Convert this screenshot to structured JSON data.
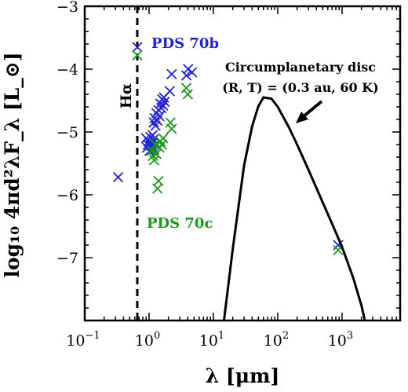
{
  "chart_data": {
    "type": "scatter",
    "xscale": "log",
    "xlim": [
      0.1,
      8000
    ],
    "ylim": [
      -8,
      -3
    ],
    "xlabel": "λ [μm]",
    "ylabel": "log₁₀ 4πd²λF_λ [L_⊙]",
    "x_ticks": [
      {
        "value": 0.1,
        "base": "10",
        "exp": "−1"
      },
      {
        "value": 1,
        "base": "10",
        "exp": "0"
      },
      {
        "value": 10,
        "base": "10",
        "exp": "1"
      },
      {
        "value": 100,
        "base": "10",
        "exp": "2"
      },
      {
        "value": 1000,
        "base": "10",
        "exp": "3"
      }
    ],
    "y_ticks": [
      {
        "value": -3,
        "label": "−3"
      },
      {
        "value": -4,
        "label": "−4"
      },
      {
        "value": -5,
        "label": "−5"
      },
      {
        "value": -6,
        "label": "−6"
      },
      {
        "value": -7,
        "label": "−7"
      }
    ],
    "grid": false,
    "colors": {
      "pds70b": "#2222dd",
      "pds70c": "#1a9a1a",
      "curve": "#000000"
    },
    "series": [
      {
        "name": "PDS 70b",
        "marker": "x",
        "points": [
          [
            0.33,
            -5.72
          ],
          [
            0.656,
            -3.65
          ],
          [
            0.9,
            -5.1
          ],
          [
            0.93,
            -5.25
          ],
          [
            0.96,
            -5.2
          ],
          [
            0.99,
            -5.15
          ],
          [
            1.02,
            -5.3
          ],
          [
            1.05,
            -5.08
          ],
          [
            1.08,
            -5.22
          ],
          [
            1.11,
            -5.18
          ],
          [
            1.14,
            -5.05
          ],
          [
            1.17,
            -5.12
          ],
          [
            1.2,
            -5.28
          ],
          [
            1.18,
            -4.85
          ],
          [
            1.22,
            -4.78
          ],
          [
            1.26,
            -4.9
          ],
          [
            1.3,
            -4.7
          ],
          [
            1.35,
            -4.82
          ],
          [
            1.4,
            -4.65
          ],
          [
            1.45,
            -4.75
          ],
          [
            1.5,
            -4.55
          ],
          [
            1.55,
            -4.62
          ],
          [
            1.6,
            -4.48
          ],
          [
            1.65,
            -4.58
          ],
          [
            1.7,
            -4.45
          ],
          [
            1.75,
            -4.52
          ],
          [
            2.1,
            -4.35
          ],
          [
            2.25,
            -4.08
          ],
          [
            3.8,
            -4.1
          ],
          [
            4.05,
            -4.0
          ],
          [
            4.65,
            -4.05
          ],
          [
            870,
            -6.8
          ]
        ]
      },
      {
        "name": "PDS 70c",
        "marker": "x",
        "points": [
          [
            0.656,
            -3.78
          ],
          [
            1.1,
            -5.3
          ],
          [
            1.15,
            -5.38
          ],
          [
            1.2,
            -5.45
          ],
          [
            1.25,
            -5.2
          ],
          [
            1.3,
            -5.35
          ],
          [
            1.35,
            -5.9
          ],
          [
            1.4,
            -5.78
          ],
          [
            1.45,
            -5.25
          ],
          [
            1.5,
            -5.15
          ],
          [
            1.58,
            -5.2
          ],
          [
            1.65,
            -5.1
          ],
          [
            2.15,
            -4.85
          ],
          [
            2.25,
            -4.95
          ],
          [
            3.8,
            -4.3
          ],
          [
            4.0,
            -4.4
          ],
          [
            870,
            -6.88
          ]
        ]
      },
      {
        "name": "Circumplanetary disc",
        "type": "line",
        "temperature_K": 60,
        "peak": [
          60,
          -4.45
        ],
        "points": [
          [
            14.6,
            -8.0
          ],
          [
            20,
            -6.86
          ],
          [
            30,
            -5.53
          ],
          [
            40,
            -4.91
          ],
          [
            50,
            -4.59
          ],
          [
            60,
            -4.45
          ],
          [
            80,
            -4.47
          ],
          [
            100,
            -4.6
          ],
          [
            150,
            -4.93
          ],
          [
            200,
            -5.2
          ],
          [
            300,
            -5.6
          ],
          [
            500,
            -6.12
          ],
          [
            700,
            -6.46
          ],
          [
            1000,
            -6.83
          ],
          [
            1500,
            -7.33
          ],
          [
            2000,
            -7.76
          ],
          [
            2260,
            -8.0
          ]
        ]
      }
    ],
    "vline": {
      "x": 0.656,
      "style": "dashed",
      "label": "Hα"
    },
    "annotations": {
      "pds70b_label": "PDS 70b",
      "pds70c_label": "PDS 70c",
      "disc_title": "Circumplanetary disc",
      "disc_params": "(R, T) = (0.3 au, 60 K)"
    }
  }
}
